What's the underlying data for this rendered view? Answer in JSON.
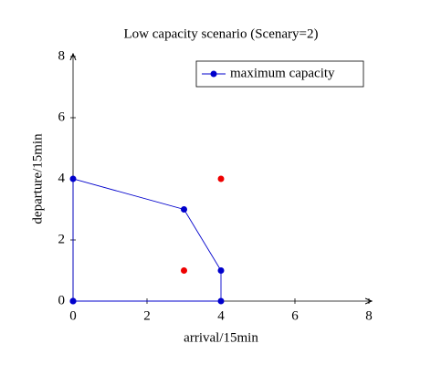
{
  "chart_data": {
    "type": "line",
    "title": "Low capacity scenario (Scenary=2)",
    "x_label": "arrival/15min",
    "y_label": "departure/15min",
    "xlim": [
      0,
      8
    ],
    "ylim": [
      0,
      8
    ],
    "xticks": [
      0,
      2,
      4,
      6,
      8
    ],
    "yticks": [
      0,
      2,
      4,
      6,
      8
    ],
    "grid": false,
    "legend": "top right",
    "series": [
      {
        "name": "maximum capacity",
        "color": "#0000cc",
        "style": "line-markers",
        "x": [
          0,
          0,
          3,
          4,
          4,
          0
        ],
        "values": [
          0,
          4,
          3,
          1,
          0,
          0
        ]
      },
      {
        "color": "#ee0000",
        "style": "markers",
        "x": [
          3,
          4
        ],
        "values": [
          1,
          4
        ]
      }
    ]
  }
}
